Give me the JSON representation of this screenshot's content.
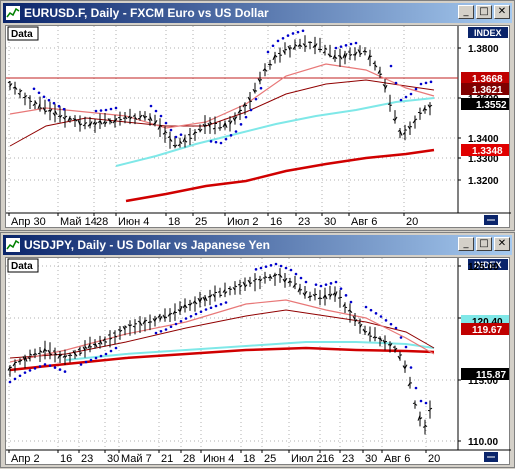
{
  "window1": {
    "title": "EURUSD.F, Daily - FXCM Euro vs US Dollar",
    "data_label": "Data",
    "index_label": "INDEX",
    "buttons": {
      "minimize": "_",
      "maximize": "□",
      "close": "✕"
    },
    "y_ticks": [
      "1.3800",
      "1.3600",
      "1.3400",
      "1.3300",
      "1.3200"
    ],
    "x_labels": [
      "Апр 30",
      "Май 14",
      "28",
      "Июн 4",
      "18",
      "25",
      "Июл 2",
      "16",
      "23",
      "30",
      "Авг 6",
      "20"
    ],
    "price_tags": [
      {
        "text": "1.3668",
        "bg": "#c00000",
        "color": "#ffffff"
      },
      {
        "text": "1.3621",
        "bg": "#800000",
        "color": "#ffffff"
      },
      {
        "text": "1.3552",
        "bg": "#000000",
        "color": "#ffffff",
        "marker": "▼"
      },
      {
        "text": "1.3348",
        "bg": "#e00000",
        "color": "#ffffff"
      }
    ]
  },
  "window2": {
    "title": "USDJPY, Daily - US Dollar vs Japanese Yen",
    "data_label": "Data",
    "index_label": "INDEX",
    "buttons": {
      "minimize": "_",
      "maximize": "□",
      "close": "✕"
    },
    "y_ticks": [
      "125.00",
      "120.00",
      "115.00",
      "110.00"
    ],
    "x_labels": [
      "Апр 2",
      "16",
      "23",
      "30",
      "Май 7",
      "21",
      "28",
      "Июн 4",
      "18",
      "25",
      "Июл 2",
      "16",
      "23",
      "30",
      "Авг 6",
      "20"
    ],
    "price_tags": [
      {
        "text": "120.40",
        "bg": "#80e8e8",
        "color": "#000000"
      },
      {
        "text": "119.67",
        "bg": "#c00000",
        "color": "#ffffff"
      },
      {
        "text": "115.87",
        "bg": "#000000",
        "color": "#ffffff",
        "marker": "▲"
      }
    ]
  },
  "colors": {
    "titlebar": "#0a246a",
    "candles": "#000000",
    "sar_dots": "#0000cc",
    "ma_fast": "#e87878",
    "ma_mid": "#900000",
    "ma_cyan": "#7fe8e8",
    "ma_slow": "#d00000",
    "hline": "#c02020"
  },
  "icons": {
    "chart_icon": "chart-icon",
    "scroll_icon": "scroll-end-icon"
  }
}
